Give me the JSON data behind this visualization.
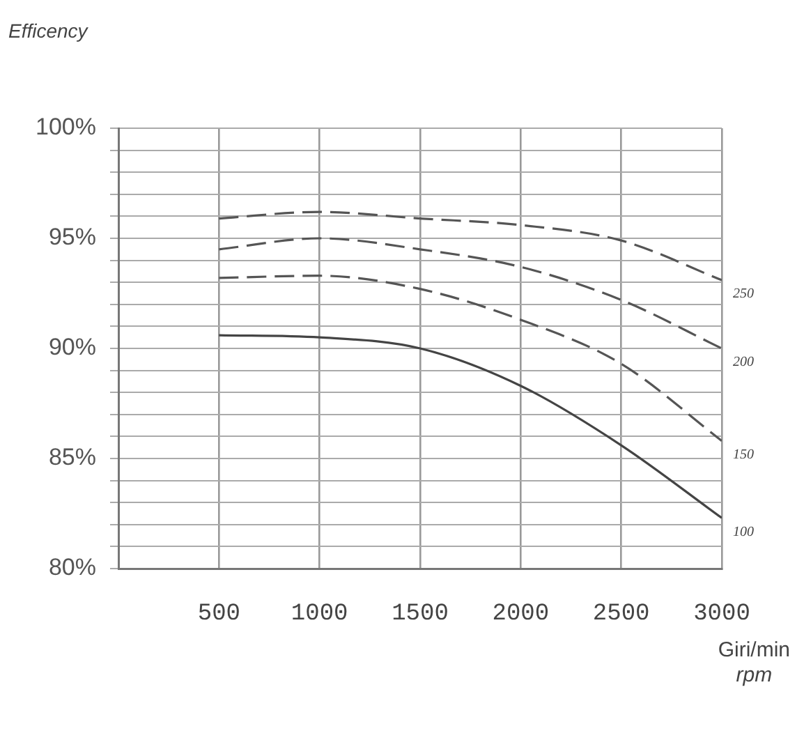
{
  "chart_data": {
    "type": "line",
    "ylabel": "Efficency",
    "xlabel": "Giri/min\nrpm",
    "xlim": [
      0,
      3000
    ],
    "xticks": [
      500,
      1000,
      1500,
      2000,
      2500,
      3000
    ],
    "ylim": [
      80,
      100
    ],
    "yticks": [
      {
        "value": 80,
        "label": "80%"
      },
      {
        "value": 81,
        "label": null
      },
      {
        "value": 82,
        "label": null
      },
      {
        "value": 83,
        "label": null
      },
      {
        "value": 84,
        "label": null
      },
      {
        "value": 85,
        "label": "85%"
      },
      {
        "value": 86,
        "label": null
      },
      {
        "value": 87,
        "label": null
      },
      {
        "value": 88,
        "label": null
      },
      {
        "value": 89,
        "label": null
      },
      {
        "value": 90,
        "label": "90%"
      },
      {
        "value": 91,
        "label": null
      },
      {
        "value": 92,
        "label": null
      },
      {
        "value": 93,
        "label": null
      },
      {
        "value": 94,
        "label": null
      },
      {
        "value": 95,
        "label": "95%"
      },
      {
        "value": 96,
        "label": null
      },
      {
        "value": 97,
        "label": null
      },
      {
        "value": 98,
        "label": null
      },
      {
        "value": 99,
        "label": null
      },
      {
        "value": 100,
        "label": "100%"
      }
    ],
    "grid": true,
    "legend": false,
    "marker": "none",
    "x": [
      500,
      1000,
      1500,
      2000,
      2500,
      3000
    ],
    "series": [
      {
        "name": "250",
        "color": "#555555",
        "line_style": "dashed",
        "values": [
          95.9,
          96.2,
          95.9,
          95.6,
          94.9,
          93.1
        ]
      },
      {
        "name": "200",
        "color": "#555555",
        "line_style": "dashed",
        "values": [
          94.5,
          95.0,
          94.5,
          93.7,
          92.2,
          90.0
        ]
      },
      {
        "name": "150",
        "color": "#555555",
        "line_style": "dashed",
        "values": [
          93.2,
          93.3,
          92.7,
          91.3,
          89.3,
          85.8
        ]
      },
      {
        "name": "100",
        "color": "#444444",
        "line_style": "solid",
        "values": [
          90.6,
          90.5,
          90.0,
          88.3,
          85.6,
          82.3
        ]
      }
    ]
  }
}
